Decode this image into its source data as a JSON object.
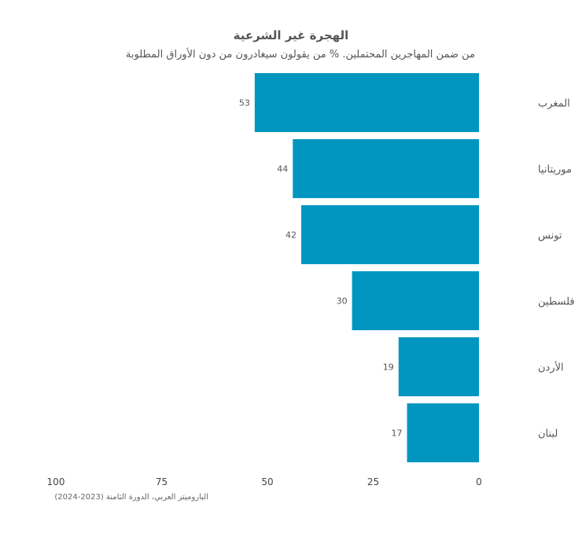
{
  "title": "الهجرة غير الشرعية",
  "subtitle": "من ضمن المهاجرين المحتملين. % من يقولون سيغادرون من دون الأوراق المطلوبة",
  "source": "الباروميتر العربي، الدورة الثامنة (2023-2024)",
  "chart_data": {
    "type": "bar",
    "orientation": "horizontal",
    "direction": "right-to-left",
    "categories": [
      "المغرب",
      "موريتانيا",
      "تونس",
      "فلسطين",
      "الأردن",
      "لبنان"
    ],
    "values": [
      53,
      44,
      42,
      30,
      19,
      17
    ],
    "xlim": [
      0,
      100
    ],
    "xticks": [
      100,
      75,
      50,
      25,
      0
    ],
    "grid": false,
    "bar_color": "#0096c0"
  }
}
